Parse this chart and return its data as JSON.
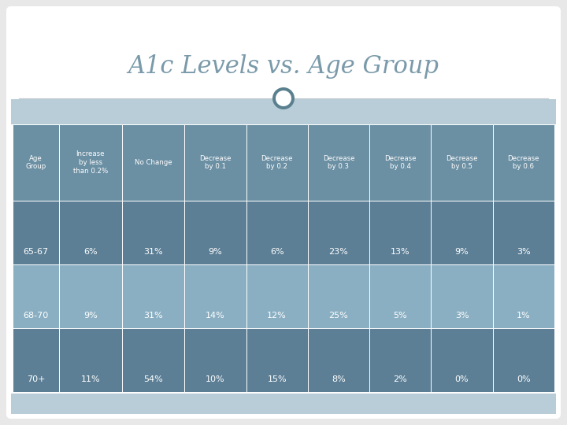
{
  "title": "A1c Levels vs. Age Group",
  "col_headers": [
    "Age\nGroup",
    "Increase\nby less\nthan 0.2%",
    "No Change",
    "Decrease\nby 0.1",
    "Decrease\nby 0.2",
    "Decrease\nby 0.3",
    "Decrease\nby 0.4",
    "Decrease\nby 0.5",
    "Decrease\nby 0.6"
  ],
  "rows": [
    [
      "65-67",
      "6%",
      "31%",
      "9%",
      "6%",
      "23%",
      "13%",
      "9%",
      "3%"
    ],
    [
      "68-70",
      "9%",
      "31%",
      "14%",
      "12%",
      "25%",
      "5%",
      "3%",
      "1%"
    ],
    [
      "70+",
      "11%",
      "54%",
      "10%",
      "15%",
      "8%",
      "2%",
      "0%",
      "0%"
    ]
  ],
  "bg_outer": "#e8e8e8",
  "bg_white": "#ffffff",
  "header_bg": "#6b8fa3",
  "row_dark": "#5c7f96",
  "row_light": "#8aafc2",
  "strip_light": "#b8cdd8",
  "title_color": "#7a9aaa",
  "header_text": "#ffffff",
  "cell_text": "#ffffff",
  "divider": "#ffffff",
  "circle_ring": "#5a8090",
  "circle_fill": "#ffffff",
  "line_color": "#c0d4dc"
}
